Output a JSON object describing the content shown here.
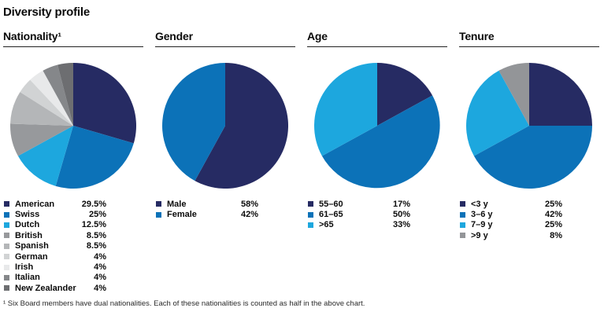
{
  "page": {
    "title": "Diversity profile",
    "footnote": "¹ Six Board members have dual nationalities. Each of these nationalities is counted as half in the above chart."
  },
  "colors": {
    "navy": "#262b63",
    "blue": "#0c72b8",
    "light_blue": "#1da7de",
    "gray": "#939598",
    "text": "#0b0b0b",
    "rule": "#222222"
  },
  "chart_data": [
    {
      "type": "pie",
      "title": "Nationality¹",
      "start_angle_deg": 0,
      "direction": "clockwise",
      "legend_position": "bottom",
      "slices": [
        {
          "label": "American",
          "value": 29.5,
          "display": "29.5%",
          "color": "#262b63"
        },
        {
          "label": "Swiss",
          "value": 25,
          "display": "25%",
          "color": "#0c72b8"
        },
        {
          "label": "Dutch",
          "value": 12.5,
          "display": "12.5%",
          "color": "#1da7de"
        },
        {
          "label": "British",
          "value": 8.5,
          "display": "8.5%",
          "color": "#97999c"
        },
        {
          "label": "Spanish",
          "value": 8.5,
          "display": "8.5%",
          "color": "#b4b6b8"
        },
        {
          "label": "German",
          "value": 4,
          "display": "4%",
          "color": "#d1d3d4"
        },
        {
          "label": "Irish",
          "value": 4,
          "display": "4%",
          "color": "#e8e9ea"
        },
        {
          "label": "Italian",
          "value": 4,
          "display": "4%",
          "color": "#85878a"
        },
        {
          "label": "New Zealander",
          "value": 4,
          "display": "4%",
          "color": "#6d6e71"
        }
      ]
    },
    {
      "type": "pie",
      "title": "Gender",
      "start_angle_deg": 0,
      "direction": "clockwise",
      "legend_position": "bottom",
      "slices": [
        {
          "label": "Male",
          "value": 58,
          "display": "58%",
          "color": "#262b63"
        },
        {
          "label": "Female",
          "value": 42,
          "display": "42%",
          "color": "#0c72b8"
        }
      ]
    },
    {
      "type": "pie",
      "title": "Age",
      "start_angle_deg": 0,
      "direction": "clockwise",
      "legend_position": "bottom",
      "slices": [
        {
          "label": "55–60",
          "value": 17,
          "display": "17%",
          "color": "#262b63"
        },
        {
          "label": "61–65",
          "value": 50,
          "display": "50%",
          "color": "#0c72b8"
        },
        {
          "label": ">65",
          "value": 33,
          "display": "33%",
          "color": "#1da7de"
        }
      ]
    },
    {
      "type": "pie",
      "title": "Tenure",
      "start_angle_deg": 0,
      "direction": "clockwise",
      "legend_position": "bottom",
      "slices": [
        {
          "label": "<3 y",
          "value": 25,
          "display": "25%",
          "color": "#262b63"
        },
        {
          "label": "3–6 y",
          "value": 42,
          "display": "42%",
          "color": "#0c72b8"
        },
        {
          "label": "7–9 y",
          "value": 25,
          "display": "25%",
          "color": "#1da7de"
        },
        {
          "label": ">9 y",
          "value": 8,
          "display": "8%",
          "color": "#939598"
        }
      ]
    }
  ]
}
